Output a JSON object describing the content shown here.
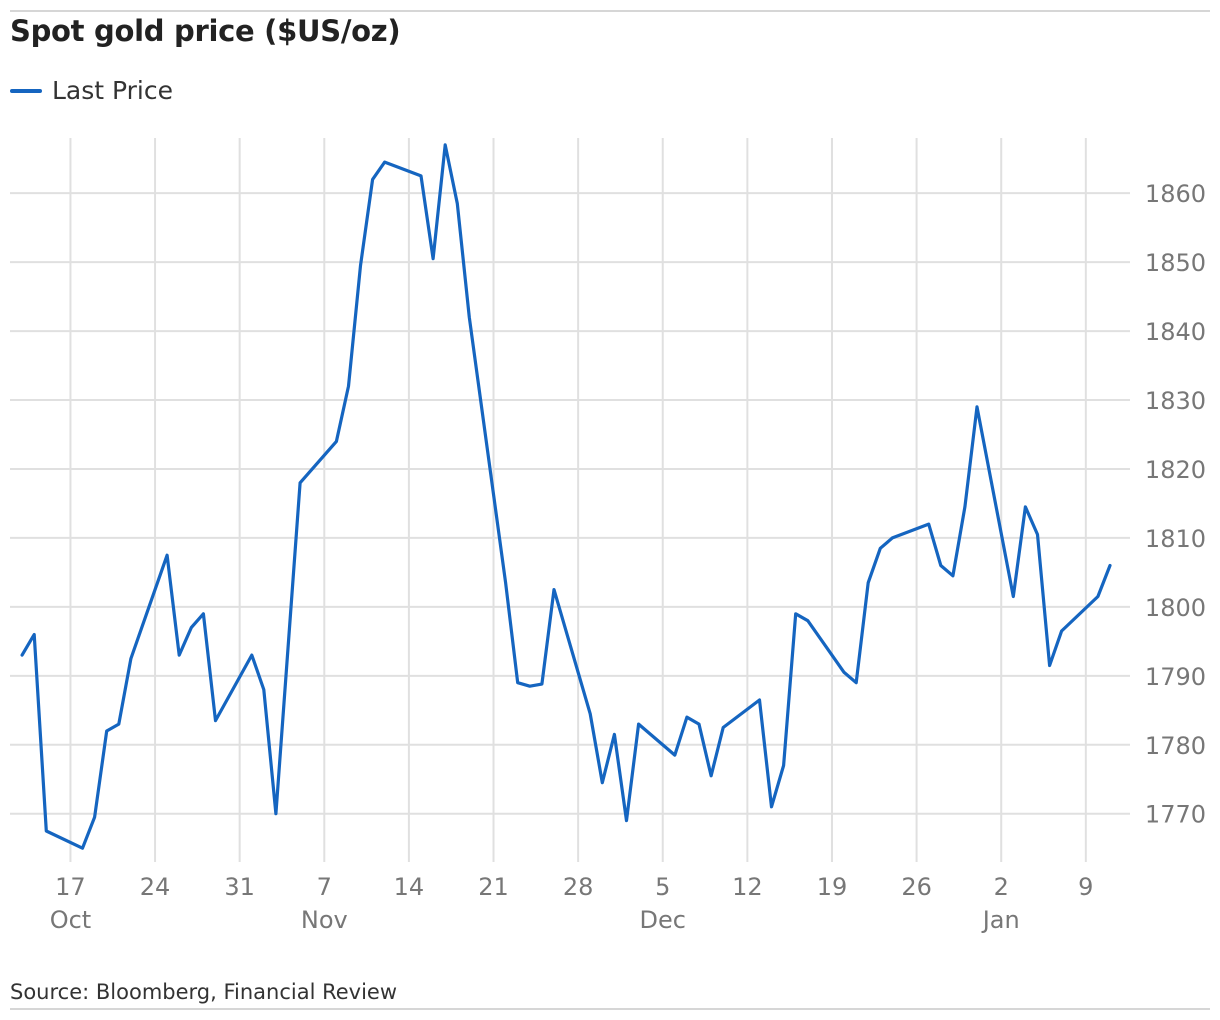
{
  "title": "Spot gold price ($US/oz)",
  "legend": {
    "label": "Last Price"
  },
  "source": "Source: Bloomberg, Financial Review",
  "colors": {
    "line": "#1565c0",
    "grid": "#e0e0e0",
    "tick_text": "#777777"
  },
  "chart_data": {
    "type": "line",
    "title": "Spot gold price ($US/oz)",
    "xlabel": "",
    "ylabel": "",
    "grid": true,
    "legend_position": "top-left",
    "y_axis_position": "right",
    "ylim": [
      1763,
      1868
    ],
    "y_ticks": [
      1770,
      1780,
      1790,
      1800,
      1810,
      1820,
      1830,
      1840,
      1850,
      1860
    ],
    "x_range": [
      "2022-10-12",
      "2023-01-11"
    ],
    "x_ticks": [
      {
        "date": "2022-10-17",
        "label": "17"
      },
      {
        "date": "2022-10-24",
        "label": "24"
      },
      {
        "date": "2022-10-31",
        "label": "31"
      },
      {
        "date": "2022-11-07",
        "label": "7"
      },
      {
        "date": "2022-11-14",
        "label": "14"
      },
      {
        "date": "2022-11-21",
        "label": "21"
      },
      {
        "date": "2022-11-28",
        "label": "28"
      },
      {
        "date": "2022-12-05",
        "label": "5"
      },
      {
        "date": "2022-12-12",
        "label": "12"
      },
      {
        "date": "2022-12-19",
        "label": "19"
      },
      {
        "date": "2022-12-26",
        "label": "26"
      },
      {
        "date": "2023-01-02",
        "label": "2"
      },
      {
        "date": "2023-01-09",
        "label": "9"
      }
    ],
    "month_labels": [
      {
        "date": "2022-10-17",
        "label": "Oct"
      },
      {
        "date": "2022-11-07",
        "label": "Nov"
      },
      {
        "date": "2022-12-05",
        "label": "Dec"
      },
      {
        "date": "2023-01-02",
        "label": "Jan"
      }
    ],
    "series": [
      {
        "name": "Last Price",
        "x": [
          "2022-10-13",
          "2022-10-14",
          "2022-10-15",
          "2022-10-18",
          "2022-10-19",
          "2022-10-20",
          "2022-10-21",
          "2022-10-22",
          "2022-10-25",
          "2022-10-26",
          "2022-10-27",
          "2022-10-28",
          "2022-10-29",
          "2022-11-01",
          "2022-11-02",
          "2022-11-03",
          "2022-11-05",
          "2022-11-08",
          "2022-11-09",
          "2022-11-10",
          "2022-11-11",
          "2022-11-12",
          "2022-11-15",
          "2022-11-16",
          "2022-11-17",
          "2022-11-18",
          "2022-11-19",
          "2022-11-22",
          "2022-11-23",
          "2022-11-24",
          "2022-11-25",
          "2022-11-26",
          "2022-11-29",
          "2022-11-30",
          "2022-12-01",
          "2022-12-02",
          "2022-12-03",
          "2022-12-06",
          "2022-12-07",
          "2022-12-08",
          "2022-12-09",
          "2022-12-10",
          "2022-12-13",
          "2022-12-14",
          "2022-12-15",
          "2022-12-16",
          "2022-12-17",
          "2022-12-20",
          "2022-12-21",
          "2022-12-22",
          "2022-12-23",
          "2022-12-24",
          "2022-12-27",
          "2022-12-28",
          "2022-12-29",
          "2022-12-30",
          "2022-12-31",
          "2023-01-03",
          "2023-01-04",
          "2023-01-05",
          "2023-01-06",
          "2023-01-07",
          "2023-01-10",
          "2023-01-11"
        ],
        "values": [
          1793,
          1796,
          1767.5,
          1765,
          1769.5,
          1782,
          1783,
          1792.5,
          1807.5,
          1793,
          1797,
          1799,
          1783.5,
          1793,
          1788,
          1770,
          1818,
          1824,
          1832,
          1849.5,
          1862,
          1864.5,
          1862.5,
          1850.5,
          1867,
          1858.5,
          1842,
          1803.5,
          1789,
          1788.5,
          1788.8,
          1802.5,
          1784.5,
          1774.5,
          1781.5,
          1769,
          1783,
          1778.5,
          1784,
          1783,
          1775.5,
          1782.5,
          1786.5,
          1771,
          1777,
          1799,
          1798,
          1790.5,
          1789,
          1803.5,
          1808.5,
          1810,
          1812,
          1806,
          1804.5,
          1814.5,
          1829,
          1801.5,
          1814.5,
          1810.5,
          1791.5,
          1796.5,
          1801.5,
          1806
        ]
      }
    ]
  }
}
